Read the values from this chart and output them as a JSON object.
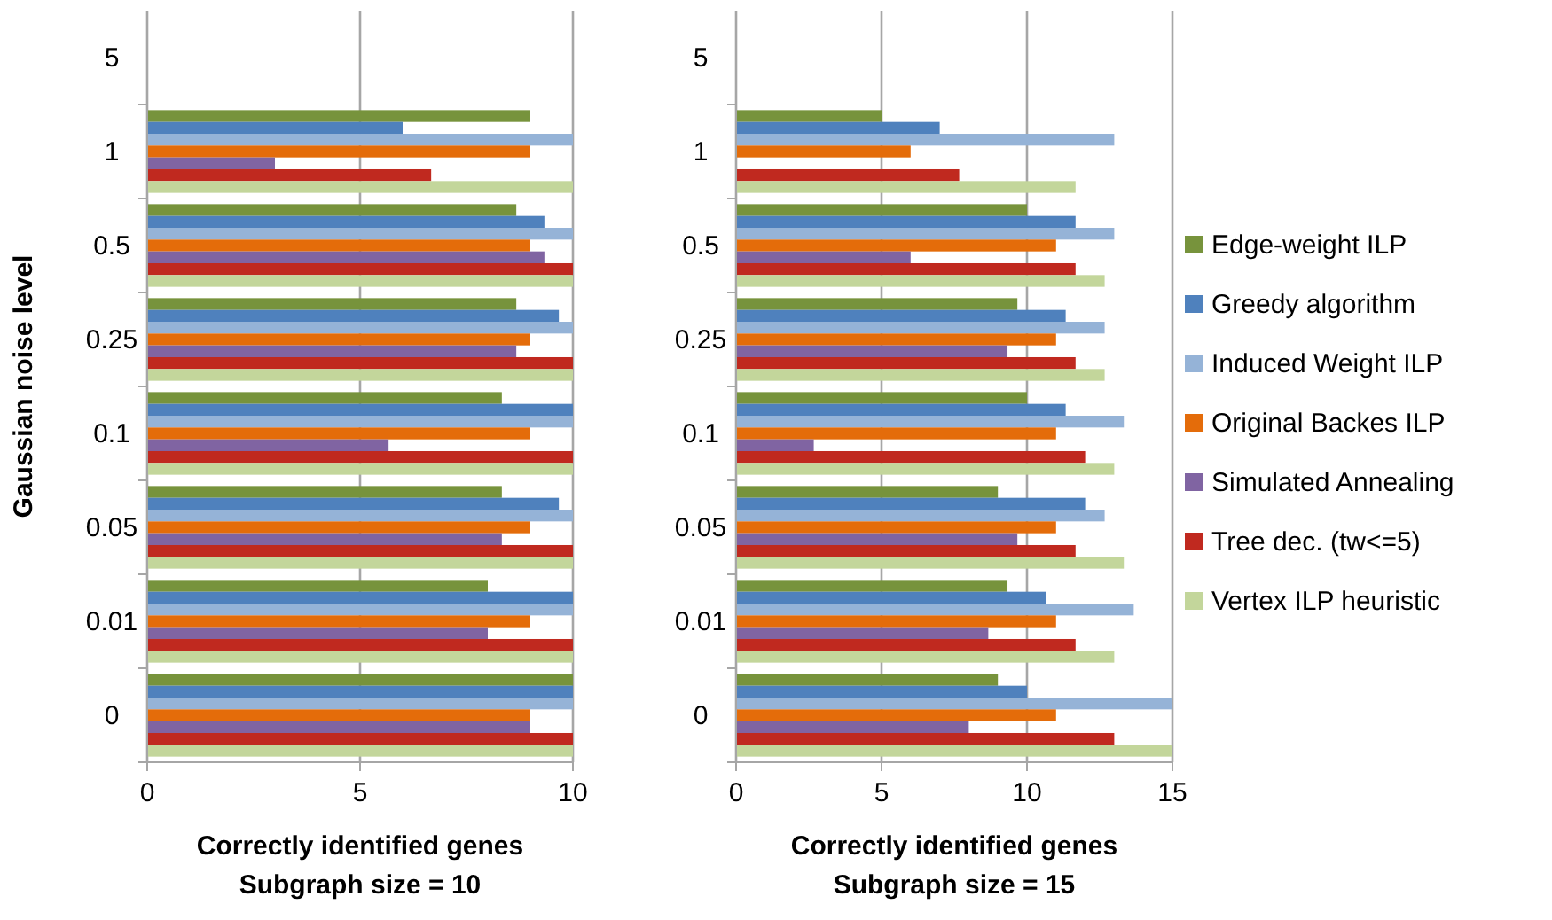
{
  "chart_data": [
    {
      "type": "bar",
      "orientation": "horizontal",
      "xlabel": "Correctly identified genes\nSubgraph size = 10",
      "ylabel": "Gaussian noise level",
      "categories": [
        "5",
        "1",
        "0.5",
        "0.25",
        "0.1",
        "0.05",
        "0.01",
        "0"
      ],
      "xlim": [
        0,
        10
      ],
      "xticks": [
        0,
        5,
        10
      ],
      "grid": "x",
      "legend": false,
      "series": [
        {
          "color": "#77933c",
          "values": [
            null,
            9,
            8.67,
            8.67,
            8.33,
            8.33,
            8,
            10
          ]
        },
        {
          "color": "#4f81bd",
          "values": [
            null,
            6,
            9.33,
            9.67,
            10,
            9.67,
            10,
            10
          ]
        },
        {
          "color": "#95b3d7",
          "values": [
            null,
            10,
            10,
            10,
            10,
            10,
            10,
            10
          ]
        },
        {
          "color": "#e46c0a",
          "values": [
            null,
            9,
            9,
            9,
            9,
            9,
            9,
            9
          ]
        },
        {
          "color": "#8064a2",
          "values": [
            null,
            3,
            9.33,
            8.67,
            5.67,
            8.33,
            8,
            9
          ]
        },
        {
          "color": "#c0291f",
          "values": [
            null,
            6.67,
            10,
            10,
            10,
            10,
            10,
            10
          ]
        },
        {
          "color": "#c3d69b",
          "values": [
            null,
            10,
            10,
            10,
            10,
            10,
            10,
            10
          ]
        }
      ]
    },
    {
      "type": "bar",
      "orientation": "horizontal",
      "xlabel": "Correctly identified genes\nSubgraph size = 15",
      "categories": [
        "5",
        "1",
        "0.5",
        "0.25",
        "0.1",
        "0.05",
        "0.01",
        "0"
      ],
      "xlim": [
        0,
        15
      ],
      "xticks": [
        0,
        5,
        10,
        15
      ],
      "grid": "x",
      "legend": "right",
      "series": [
        {
          "name": "Edge-weight ILP",
          "color": "#77933c",
          "values": [
            null,
            5,
            10,
            9.67,
            10,
            9,
            9.33,
            9
          ]
        },
        {
          "name": "Greedy algorithm",
          "color": "#4f81bd",
          "values": [
            null,
            7,
            11.67,
            11.33,
            11.33,
            12,
            10.67,
            10
          ]
        },
        {
          "name": "Induced Weight ILP",
          "color": "#95b3d7",
          "values": [
            null,
            13,
            13,
            12.67,
            13.33,
            12.67,
            13.67,
            15
          ]
        },
        {
          "name": "Original Backes ILP",
          "color": "#e46c0a",
          "values": [
            null,
            6,
            11,
            11,
            11,
            11,
            11,
            11
          ]
        },
        {
          "name": "Simulated Annealing",
          "color": "#8064a2",
          "values": [
            null,
            0,
            6,
            9.33,
            2.67,
            9.67,
            8.67,
            8
          ]
        },
        {
          "name": "Tree dec. (tw<=5)",
          "color": "#c0291f",
          "values": [
            null,
            7.67,
            11.67,
            11.67,
            12,
            11.67,
            11.67,
            13
          ]
        },
        {
          "name": "Vertex ILP heuristic",
          "color": "#c3d69b",
          "values": [
            null,
            11.67,
            12.67,
            12.67,
            13,
            13.33,
            13,
            15
          ]
        }
      ]
    }
  ]
}
